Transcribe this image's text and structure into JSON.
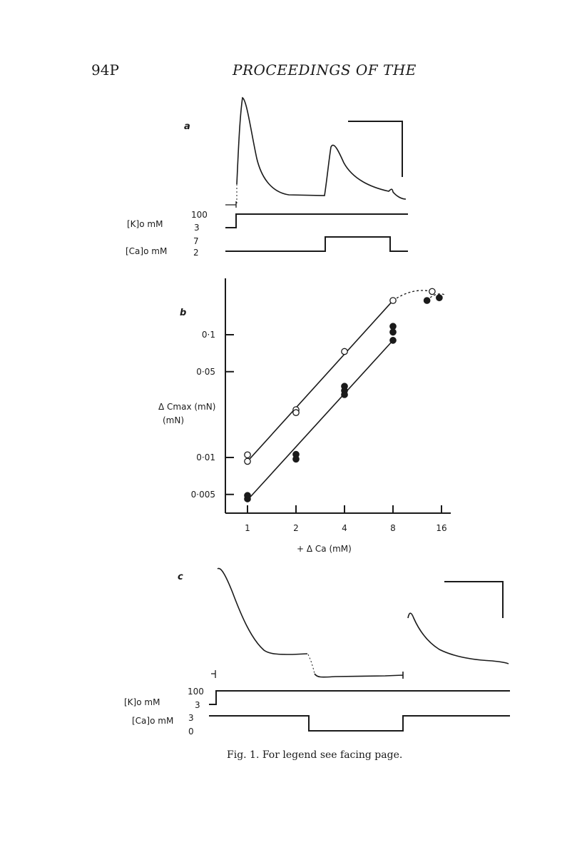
{
  "header": {
    "page_number": "94P",
    "journal": "PROCEEDINGS OF THE"
  },
  "figure": {
    "caption": "Fig. 1. For legend see facing page.",
    "panel_a": {
      "letter": "a",
      "k_label": "[K]o mM",
      "k_high": "100",
      "k_low": "3",
      "ca_label": "[Ca]o mM",
      "ca_high": "7",
      "ca_low": "2"
    },
    "panel_c": {
      "letter": "c",
      "k_label": "[K]o mM",
      "k_high": "100",
      "k_low": "3",
      "ca_label": "[Ca]o mM",
      "ca_high": "3",
      "ca_low": "0"
    }
  },
  "chart_data": {
    "type": "scatter",
    "panel_letter": "b",
    "title": "",
    "xlabel": "+ Δ Ca (mM)",
    "ylabel": "Δ Cmax (mN)",
    "x_scale": "log",
    "y_scale": "log",
    "x_ticks": [
      1,
      2,
      4,
      8,
      16
    ],
    "x_tick_labels": [
      "1",
      "2",
      "4",
      "8",
      "16"
    ],
    "y_ticks": [
      0.005,
      0.01,
      0.05,
      0.1
    ],
    "y_tick_labels": [
      "0·005",
      "0·01",
      "0·05",
      "0·1"
    ],
    "xlim": [
      1,
      18
    ],
    "ylim": [
      0.0045,
      0.3
    ],
    "series": [
      {
        "marker": "open-circle",
        "points": [
          [
            1,
            0.0105
          ],
          [
            1,
            0.0093
          ],
          [
            2,
            0.0245
          ],
          [
            2,
            0.0232
          ],
          [
            4,
            0.073
          ],
          [
            8,
            0.19
          ],
          [
            14,
            0.225
          ]
        ],
        "fit_line": [
          [
            1,
            0.0093
          ],
          [
            8,
            0.19
          ]
        ],
        "dashed_extension": [
          [
            8,
            0.19
          ],
          [
            14,
            0.225
          ]
        ]
      },
      {
        "marker": "filled-circle",
        "points": [
          [
            1,
            0.0049
          ],
          [
            1,
            0.0046
          ],
          [
            2,
            0.0106
          ],
          [
            2,
            0.0097
          ],
          [
            4,
            0.038
          ],
          [
            4,
            0.035
          ],
          [
            4,
            0.0325
          ],
          [
            8,
            0.117
          ],
          [
            8,
            0.105
          ],
          [
            8,
            0.09
          ],
          [
            13,
            0.19
          ],
          [
            15.5,
            0.2
          ]
        ],
        "fit_line": [
          [
            1,
            0.0045
          ],
          [
            8,
            0.09
          ]
        ],
        "dashed_extension": [
          [
            13,
            0.19
          ],
          [
            17,
            0.21
          ]
        ]
      }
    ]
  }
}
